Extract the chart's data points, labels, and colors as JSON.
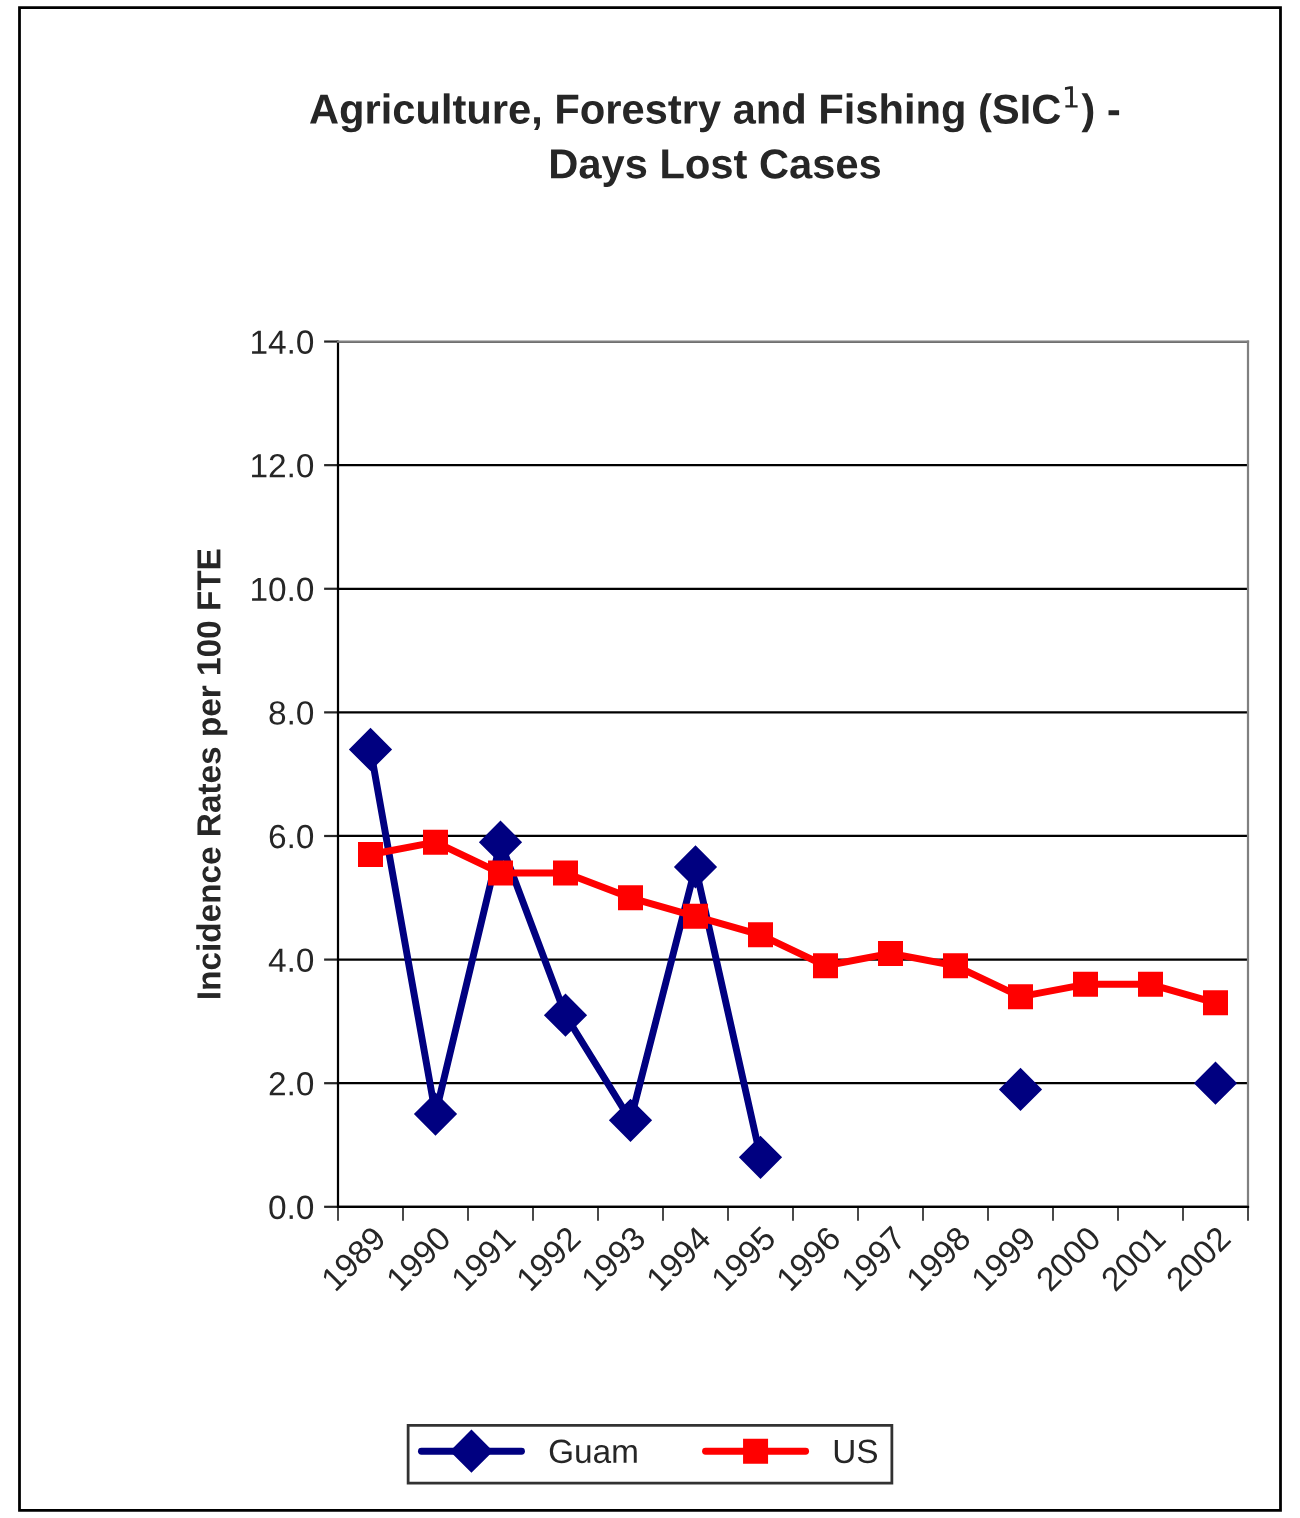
{
  "chart_data": {
    "type": "line",
    "title": "Agriculture, Forestry and Fishing (SIC$^{1}$) -\nDays Lost Cases",
    "ylabel": "Incidence Rates per 100 FTE",
    "categories": [
      "1989",
      "1990",
      "1991",
      "1992",
      "1993",
      "1994",
      "1995",
      "1996",
      "1997",
      "1998",
      "1999",
      "2000",
      "2001",
      "2002"
    ],
    "series": [
      {
        "name": "Guam",
        "color": "#000080",
        "marker": "diamond",
        "values": [
          7.4,
          1.5,
          5.9,
          3.1,
          1.4,
          5.5,
          0.8,
          null,
          null,
          null,
          1.9,
          null,
          null,
          2.0
        ]
      },
      {
        "name": "US",
        "color": "#ff0000",
        "marker": "square",
        "values": [
          5.7,
          5.9,
          5.4,
          5.4,
          5.0,
          4.7,
          4.4,
          3.9,
          4.1,
          3.9,
          3.4,
          3.6,
          3.6,
          3.3
        ]
      }
    ],
    "ylim": [
      0,
      14
    ],
    "yticks": [
      {
        "value": 0,
        "label": "0.0"
      },
      {
        "value": 2,
        "label": "2.0"
      },
      {
        "value": 4,
        "label": "4.0"
      },
      {
        "value": 6,
        "label": "6.0"
      },
      {
        "value": 8,
        "label": "8.0"
      },
      {
        "value": 10,
        "label": "10.0"
      },
      {
        "value": 12,
        "label": "12.0"
      },
      {
        "value": 14,
        "label": "14.0"
      }
    ],
    "grid": "y",
    "legend": "bottom"
  }
}
